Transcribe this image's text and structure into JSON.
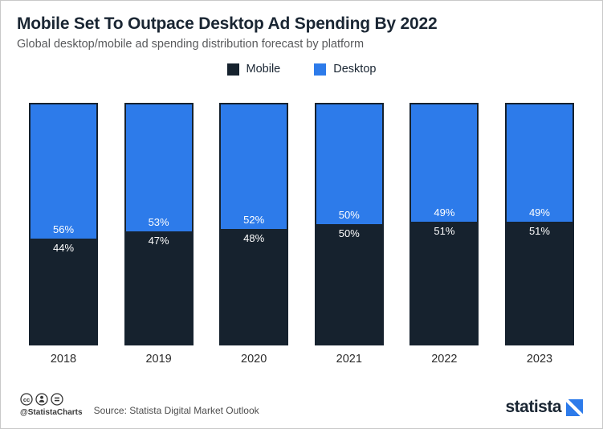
{
  "header": {
    "title": "Mobile Set To Outpace Desktop Ad Spending By 2022",
    "subtitle": "Global desktop/mobile ad spending distribution forecast by platform"
  },
  "chart_data": {
    "type": "bar",
    "stacked": true,
    "title": "Mobile Set To Outpace Desktop Ad Spending By 2022",
    "subtitle": "Global desktop/mobile ad spending distribution forecast by platform",
    "categories": [
      "2018",
      "2019",
      "2020",
      "2021",
      "2022",
      "2023"
    ],
    "series": [
      {
        "name": "Mobile",
        "color": "#16222e",
        "values": [
          44,
          47,
          48,
          50,
          51,
          51
        ]
      },
      {
        "name": "Desktop",
        "color": "#2d7bea",
        "values": [
          56,
          53,
          52,
          50,
          49,
          49
        ]
      }
    ],
    "value_suffix": "%",
    "ylim": [
      0,
      100
    ],
    "grid": false,
    "legend_position": "top",
    "label_color": "#ffffff"
  },
  "footer": {
    "attribution": "@StatistaCharts",
    "source": "Source: Statista Digital Market Outlook",
    "logo_text": "statista",
    "icons": [
      "cc-icon",
      "attribution-person-icon",
      "equal-icon"
    ]
  }
}
